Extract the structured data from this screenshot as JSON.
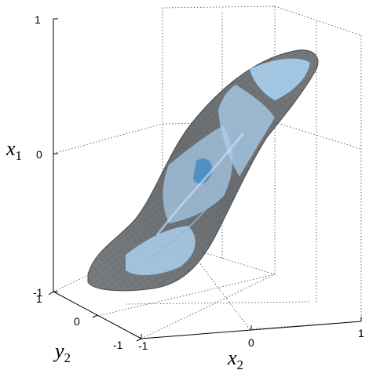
{
  "chart_data": {
    "type": "surface",
    "axes": {
      "x1": {
        "label_main": "x",
        "label_sub": "1",
        "ticks": [
          "1",
          "0",
          "-1"
        ],
        "range": [
          -1,
          1
        ]
      },
      "x2": {
        "label_main": "x",
        "label_sub": "2",
        "ticks": [
          "-1",
          "0",
          "1"
        ],
        "range": [
          -1,
          1
        ]
      },
      "y2": {
        "label_main": "y",
        "label_sub": "2",
        "ticks": [
          "1",
          "0",
          "-1"
        ],
        "range": [
          -1,
          1
        ]
      }
    },
    "grid": true,
    "colors": {
      "surface_dark": "#6b6f72",
      "surface_light": "#a9cfee",
      "surface_accent": "#3d87c4",
      "mesh": "#3c3f41"
    }
  }
}
